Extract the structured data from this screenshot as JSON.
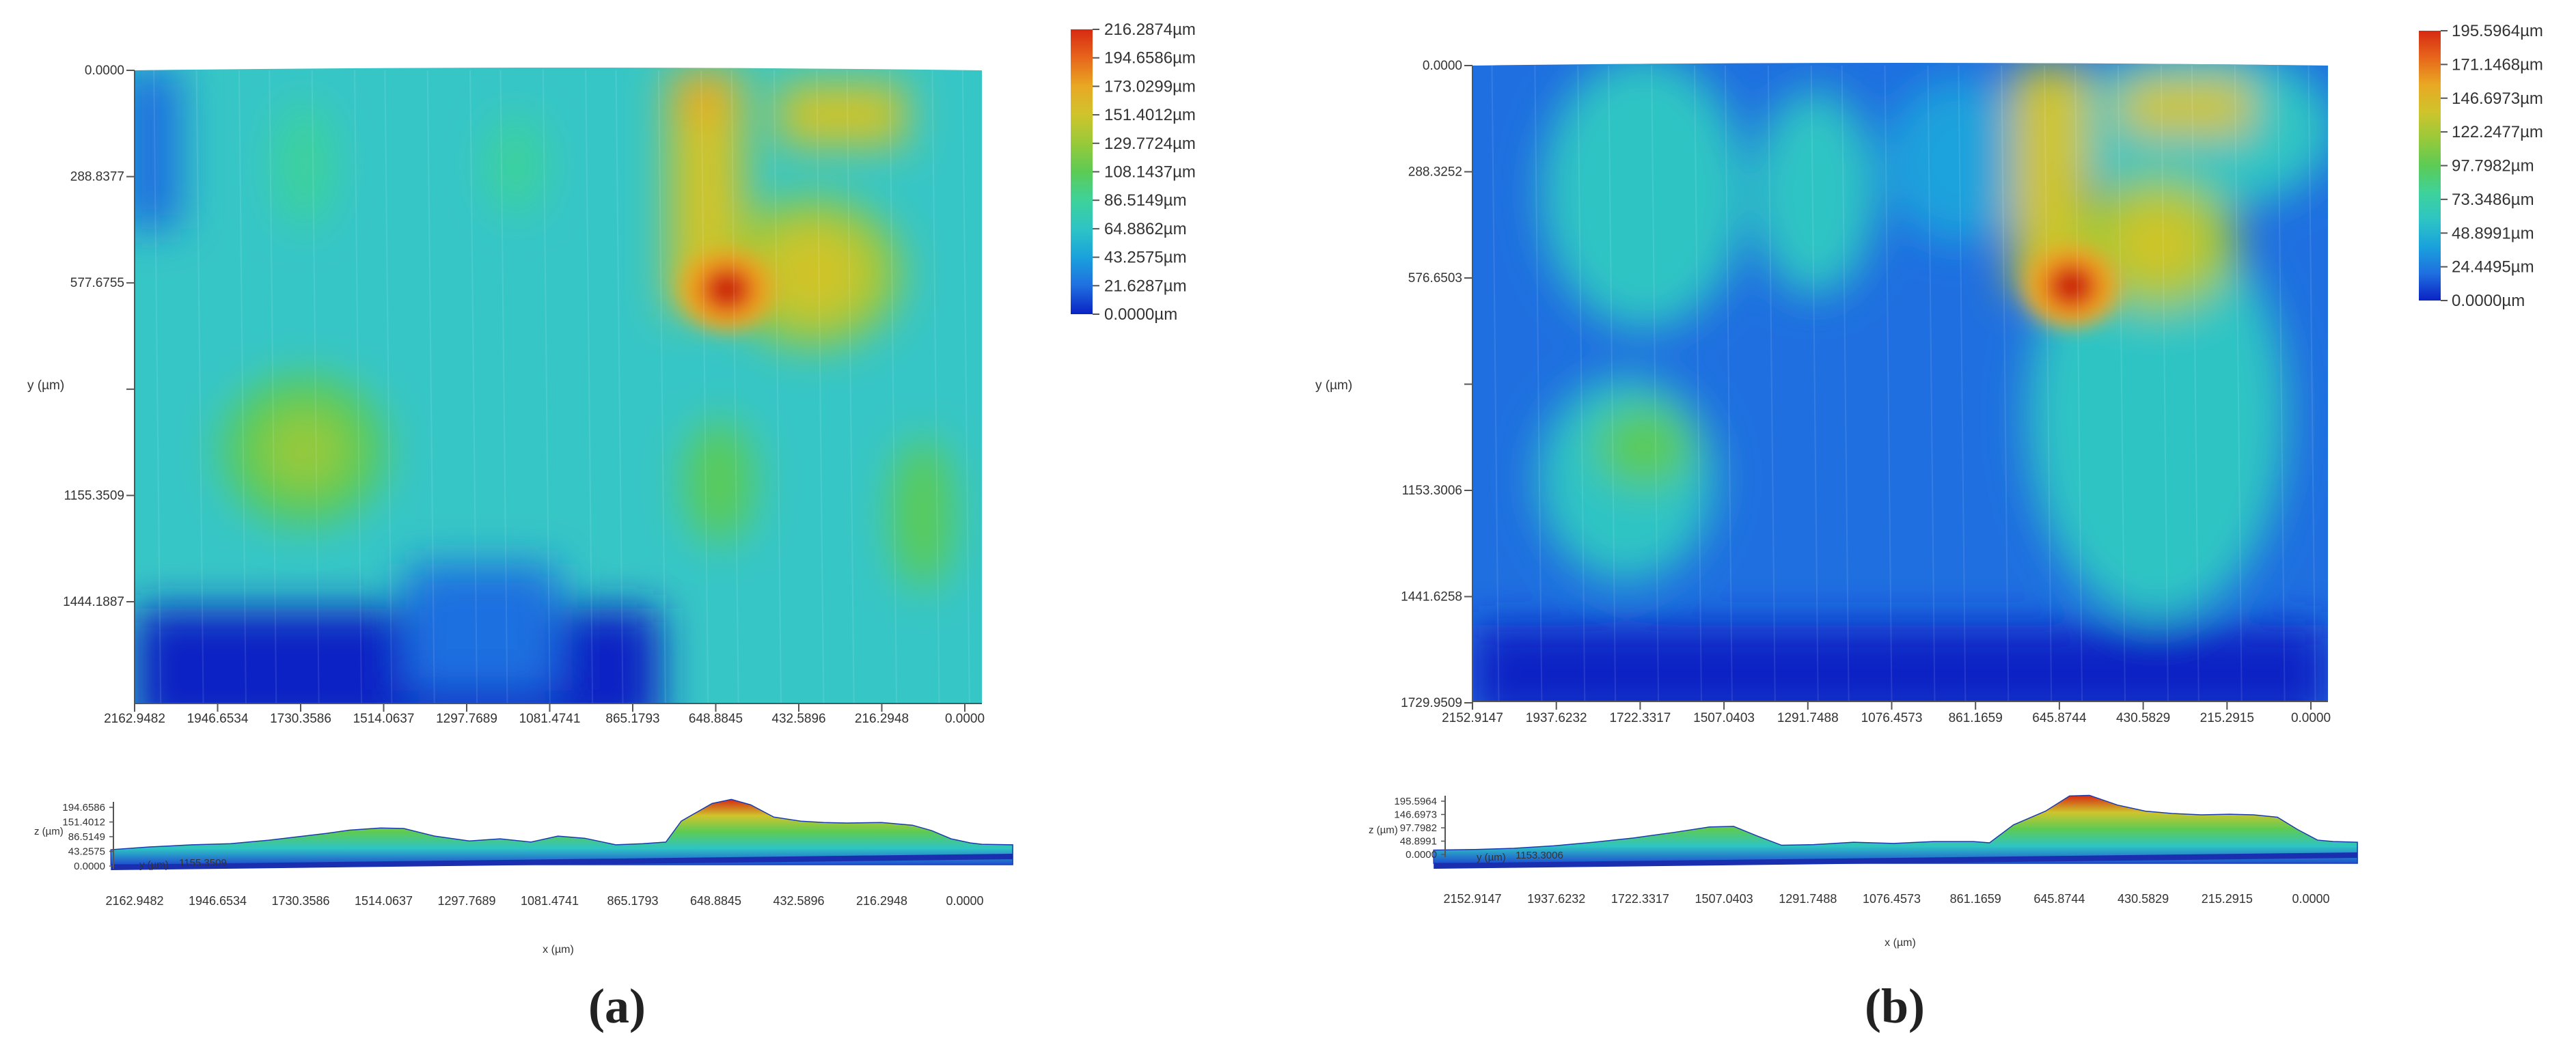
{
  "chart_data": [
    {
      "type": "heatmap",
      "panel_label": "(a)",
      "xlabel": "",
      "ylabel": "y (µm)",
      "x_ticks": [
        "2162.9482",
        "1946.6534",
        "1730.3586",
        "1514.0637",
        "1297.7689",
        "1081.4741",
        "865.1793",
        "648.8845",
        "432.5896",
        "216.2948",
        "0.0000"
      ],
      "y_ticks": [
        "0.0000",
        "288.8377",
        "577.6755",
        "",
        "1155.3509",
        "1444.1887"
      ],
      "colorbar_unit": "µm",
      "colorbar_ticks": [
        "216.2874µm",
        "194.6586µm",
        "173.0299µm",
        "151.4012µm",
        "129.7724µm",
        "108.1437µm",
        "86.5149µm",
        "64.8862µm",
        "43.2575µm",
        "21.6287µm",
        "0.0000µm"
      ],
      "z_range": [
        0.0,
        216.2874
      ],
      "x_range": [
        2162.9482,
        0.0
      ],
      "y_range": [
        0.0,
        1733.0
      ],
      "peak": {
        "x": 650,
        "y": 600,
        "z": 216.0
      },
      "profile": {
        "type": "area",
        "xlabel": "x (µm)",
        "ylabel": "z (µm)",
        "y_label_text": "y (µm)",
        "y_value_text": "1155.3509",
        "z_ticks": [
          "194.6586",
          "151.4012",
          "86.5149",
          "43.2575",
          "0.0000"
        ],
        "x_ticks": [
          "2162.9482",
          "1946.6534",
          "1730.3586",
          "1514.0637",
          "1297.7689",
          "1081.4741",
          "865.1793",
          "648.8845",
          "432.5896",
          "216.2948",
          "0.0000"
        ],
        "x": [
          2260,
          2160,
          2050,
          1950,
          1850,
          1760,
          1700,
          1640,
          1560,
          1500,
          1420,
          1330,
          1250,
          1170,
          1100,
          1030,
          950,
          880,
          820,
          780,
          700,
          650,
          600,
          540,
          470,
          410,
          350,
          260,
          180,
          130,
          80,
          30,
          0,
          -80
        ],
        "z": [
          20,
          30,
          38,
          42,
          55,
          70,
          80,
          92,
          100,
          98,
          70,
          52,
          60,
          48,
          70,
          62,
          38,
          42,
          48,
          125,
          190,
          205,
          185,
          140,
          125,
          120,
          118,
          120,
          110,
          90,
          60,
          45,
          40,
          38
        ]
      }
    },
    {
      "type": "heatmap",
      "panel_label": "(b)",
      "xlabel": "",
      "ylabel": "y (µm)",
      "x_ticks": [
        "2152.9147",
        "1937.6232",
        "1722.3317",
        "1507.0403",
        "1291.7488",
        "1076.4573",
        "861.1659",
        "645.8744",
        "430.5829",
        "215.2915",
        "0.0000"
      ],
      "y_ticks": [
        "0.0000",
        "288.3252",
        "576.6503",
        "",
        "1153.3006",
        "1441.6258",
        "1729.9509"
      ],
      "colorbar_unit": "µm",
      "colorbar_ticks": [
        "195.5964µm",
        "171.1468µm",
        "146.6973µm",
        "122.2477µm",
        "97.7982µm",
        "73.3486µm",
        "48.8991µm",
        "24.4495µm",
        "0.0000µm"
      ],
      "z_range": [
        0.0,
        195.5964
      ],
      "x_range": [
        2152.9147,
        0.0
      ],
      "y_range": [
        0.0,
        1729.9509
      ],
      "peak": {
        "x": 645,
        "y": 600,
        "z": 195.0
      },
      "profile": {
        "type": "area",
        "xlabel": "x (µm)",
        "ylabel": "z (µm)",
        "y_label_text": "y (µm)",
        "y_value_text": "1153.3006",
        "z_ticks": [
          "195.5964",
          "146.6973",
          "97.7982",
          "48.8991",
          "0.0000"
        ],
        "x_ticks": [
          "2152.9147",
          "1937.6232",
          "1722.3317",
          "1507.0403",
          "1291.7488",
          "1076.4573",
          "861.1659",
          "645.8744",
          "430.5829",
          "215.2915",
          "0.0000"
        ],
        "x": [
          2250,
          2150,
          2050,
          1950,
          1850,
          1750,
          1650,
          1560,
          1500,
          1440,
          1380,
          1300,
          1200,
          1100,
          1000,
          900,
          860,
          800,
          720,
          660,
          610,
          540,
          470,
          400,
          330,
          260,
          200,
          140,
          90,
          40,
          0,
          -60
        ],
        "z": [
          12,
          14,
          18,
          26,
          38,
          52,
          70,
          88,
          90,
          58,
          28,
          30,
          38,
          34,
          40,
          40,
          36,
          95,
          140,
          190,
          192,
          160,
          140,
          132,
          128,
          130,
          128,
          120,
          80,
          45,
          40,
          38
        ]
      }
    }
  ]
}
